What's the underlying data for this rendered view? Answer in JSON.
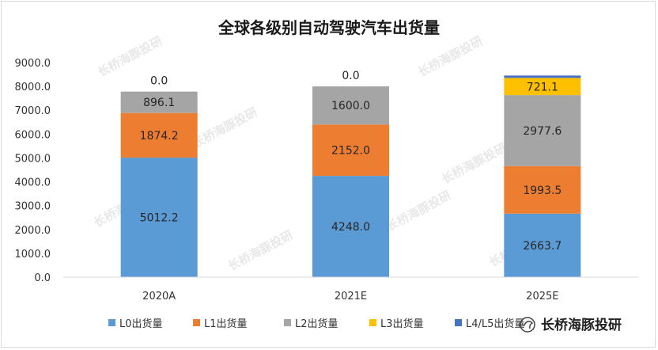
{
  "chart_data": {
    "type": "bar",
    "stacked": true,
    "title": "全球各级别自动驾驶汽车出货量",
    "categories": [
      "2020A",
      "2021E",
      "2025E"
    ],
    "series": [
      {
        "name": "L0出货量",
        "color": "#5b9bd5",
        "values": [
          5012.2,
          4248.0,
          2663.7
        ],
        "labels": [
          "5012.2",
          "4248.0",
          "2663.7"
        ]
      },
      {
        "name": "L1出货量",
        "color": "#ed7d31",
        "values": [
          1874.2,
          2152.0,
          1993.5
        ],
        "labels": [
          "1874.2",
          "2152.0",
          "1993.5"
        ]
      },
      {
        "name": "L2出货量",
        "color": "#a5a5a5",
        "values": [
          896.1,
          1600.0,
          2977.6
        ],
        "labels": [
          "896.1",
          "1600.0",
          "2977.6"
        ]
      },
      {
        "name": "L3出货量",
        "color": "#ffc000",
        "values": [
          0.0,
          0.0,
          721.1
        ],
        "labels": [
          "0.0",
          "0.0",
          "721.1"
        ]
      },
      {
        "name": "L4/L5出货量",
        "color": "#4472c4",
        "values": [
          0.0,
          0.0,
          100
        ],
        "labels": [
          "",
          "",
          ""
        ]
      }
    ],
    "ylim": [
      0,
      9000
    ],
    "yticks": [
      "0.0",
      "1000.0",
      "2000.0",
      "3000.0",
      "4000.0",
      "5000.0",
      "6000.0",
      "7000.0",
      "8000.0",
      "9000.0"
    ],
    "ytick_values": [
      0,
      1000,
      2000,
      3000,
      4000,
      5000,
      6000,
      7000,
      8000,
      9000
    ],
    "legend_position": "bottom",
    "grid": false
  },
  "watermark": {
    "text": "长桥海豚投研",
    "brand_text": "长桥海豚投研"
  }
}
